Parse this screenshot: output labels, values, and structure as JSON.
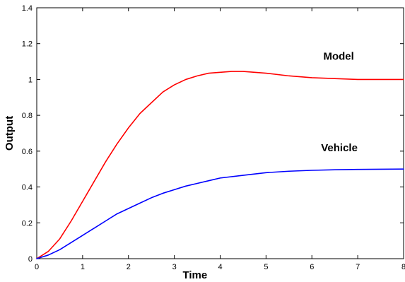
{
  "chart_data": {
    "type": "line",
    "title": "",
    "xlabel": "Time",
    "ylabel": "Output",
    "xlim": [
      0,
      8
    ],
    "ylim": [
      0,
      1.4
    ],
    "x_ticks": [
      "0",
      "1",
      "2",
      "3",
      "4",
      "5",
      "6",
      "7",
      "8"
    ],
    "y_ticks": [
      "0",
      "0.2",
      "0.4",
      "0.6",
      "0.8",
      "1",
      "1.2",
      "1.4"
    ],
    "grid": false,
    "legend": "none",
    "annotations": [
      {
        "text": "Model",
        "series": "Model"
      },
      {
        "text": "Vehicle",
        "series": "Vehicle"
      }
    ],
    "series": [
      {
        "name": "Model",
        "color": "#ff0000",
        "x": [
          0,
          0.25,
          0.5,
          0.75,
          1,
          1.25,
          1.5,
          1.75,
          2,
          2.25,
          2.5,
          2.75,
          3,
          3.25,
          3.5,
          3.75,
          4,
          4.25,
          4.5,
          4.75,
          5,
          5.5,
          6,
          6.5,
          7,
          7.5,
          8
        ],
        "y": [
          0,
          0.04,
          0.11,
          0.21,
          0.32,
          0.43,
          0.54,
          0.64,
          0.73,
          0.81,
          0.87,
          0.93,
          0.97,
          1.0,
          1.02,
          1.035,
          1.04,
          1.045,
          1.045,
          1.04,
          1.035,
          1.02,
          1.01,
          1.005,
          1.0,
          1.0,
          1.0
        ]
      },
      {
        "name": "Vehicle",
        "color": "#0000ff",
        "x": [
          0,
          0.25,
          0.5,
          0.75,
          1,
          1.25,
          1.5,
          1.75,
          2,
          2.25,
          2.5,
          2.75,
          3,
          3.25,
          3.5,
          3.75,
          4,
          4.5,
          5,
          5.5,
          6,
          6.5,
          7,
          7.5,
          8
        ],
        "y": [
          0,
          0.02,
          0.05,
          0.09,
          0.13,
          0.17,
          0.21,
          0.25,
          0.28,
          0.31,
          0.34,
          0.365,
          0.385,
          0.405,
          0.42,
          0.435,
          0.45,
          0.465,
          0.48,
          0.488,
          0.493,
          0.496,
          0.498,
          0.499,
          0.5
        ]
      }
    ]
  }
}
